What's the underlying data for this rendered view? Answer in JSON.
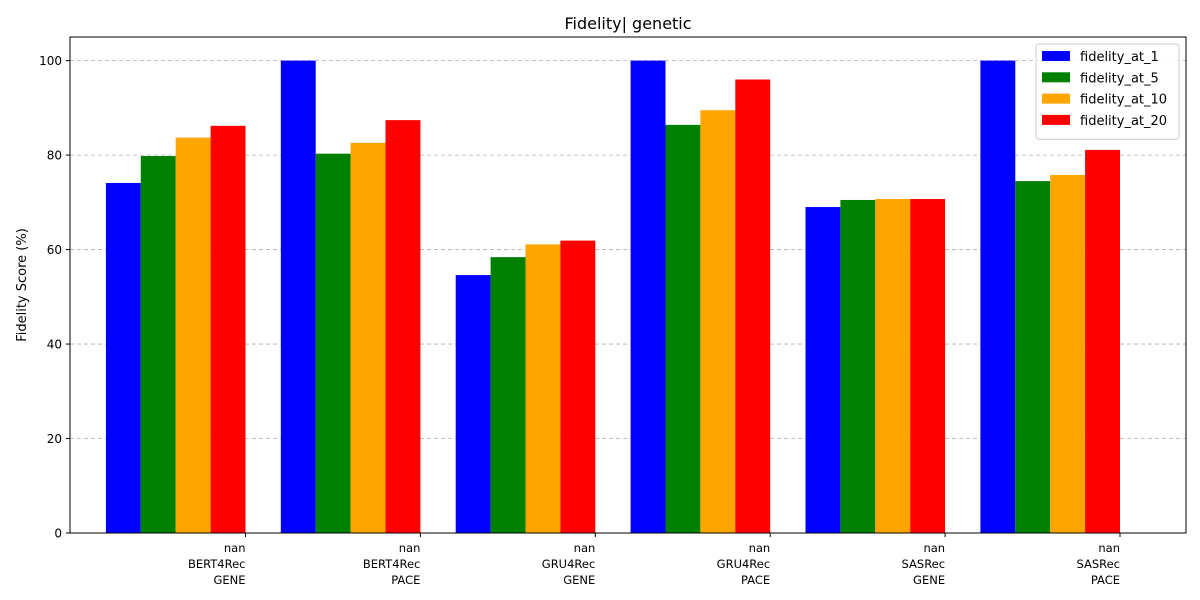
{
  "chart_data": {
    "type": "bar",
    "title": "Fidelity| genetic",
    "xlabel": "",
    "ylabel": "Fidelity Score (%)",
    "ylim": [
      0,
      105
    ],
    "yticks": [
      0,
      20,
      40,
      60,
      80,
      100
    ],
    "grid": "y-dashed",
    "legend_position": "top-right",
    "categories": [
      [
        "nan",
        "BERT4Rec",
        "GENE"
      ],
      [
        "nan",
        "BERT4Rec",
        "PACE"
      ],
      [
        "nan",
        "GRU4Rec",
        "GENE"
      ],
      [
        "nan",
        "GRU4Rec",
        "PACE"
      ],
      [
        "nan",
        "SASRec",
        "GENE"
      ],
      [
        "nan",
        "SASRec",
        "PACE"
      ]
    ],
    "series": [
      {
        "name": "fidelity_at_1",
        "color": "#0000ff",
        "values": [
          74.1,
          100.0,
          54.6,
          100.0,
          69.0,
          100.0
        ]
      },
      {
        "name": "fidelity_at_5",
        "color": "#008000",
        "values": [
          79.8,
          80.3,
          58.4,
          86.4,
          70.5,
          74.5
        ]
      },
      {
        "name": "fidelity_at_10",
        "color": "#ffa500",
        "values": [
          83.7,
          82.6,
          61.1,
          89.5,
          70.7,
          75.8
        ]
      },
      {
        "name": "fidelity_at_20",
        "color": "#ff0000",
        "values": [
          86.2,
          87.4,
          61.9,
          96.0,
          70.7,
          81.1
        ]
      }
    ]
  }
}
